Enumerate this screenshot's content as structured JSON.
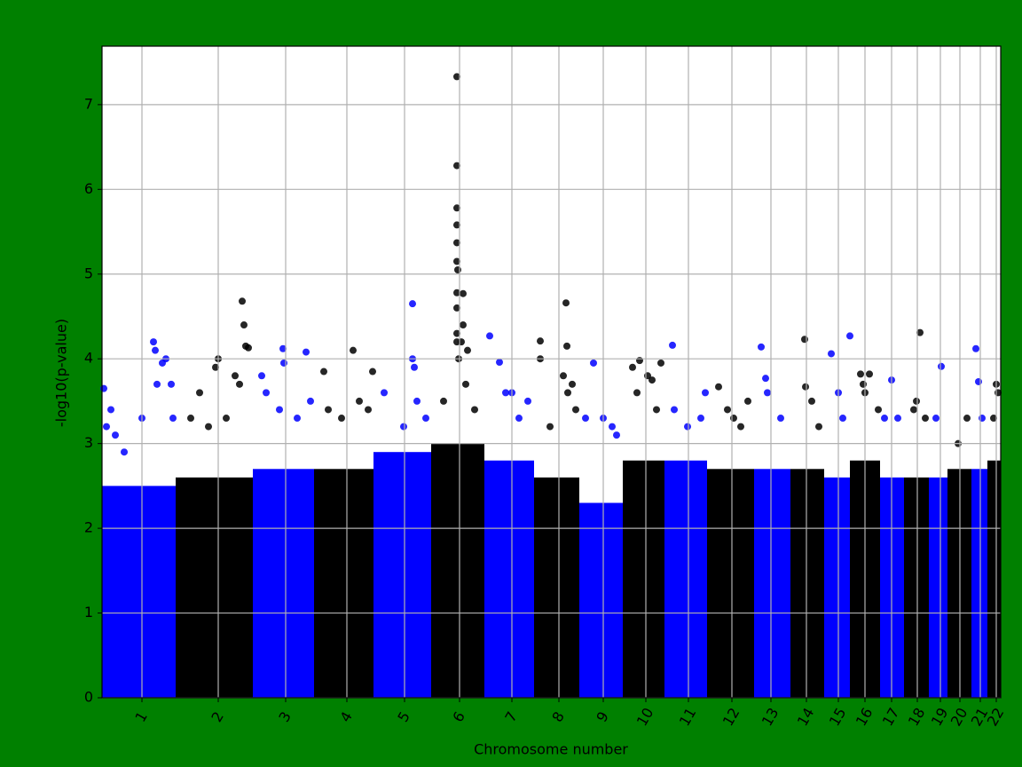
{
  "chart_data": {
    "type": "manhattan",
    "x_label": "Chromosome number",
    "y_label": "-log10(p-value)",
    "xlim": [
      0,
      1013
    ],
    "ylim": [
      0,
      7.69
    ],
    "yticks": [
      0,
      1,
      2,
      3,
      4,
      5,
      6,
      7
    ],
    "grid": true,
    "chromosomes": [
      {
        "label": "1",
        "start": 0,
        "end": 83,
        "tick": 45,
        "color": "#0000ff",
        "band_top": 2.5,
        "points": [
          [
            2,
            3.65
          ],
          [
            5,
            3.2
          ],
          [
            10,
            3.4
          ],
          [
            15,
            3.1
          ],
          [
            25,
            2.9
          ],
          [
            45,
            3.3
          ],
          [
            58,
            4.2
          ],
          [
            60,
            4.1
          ],
          [
            62,
            3.7
          ],
          [
            68,
            3.95
          ],
          [
            72,
            4.0
          ],
          [
            78,
            3.7
          ],
          [
            80,
            3.3
          ]
        ]
      },
      {
        "label": "2",
        "start": 83,
        "end": 170,
        "tick": 131,
        "color": "#000000",
        "band_top": 2.6,
        "points": [
          [
            100,
            3.3
          ],
          [
            110,
            3.6
          ],
          [
            120,
            3.2
          ],
          [
            128,
            3.9
          ],
          [
            131,
            4.0
          ],
          [
            140,
            3.3
          ],
          [
            150,
            3.8
          ],
          [
            155,
            3.7
          ],
          [
            158,
            4.68
          ],
          [
            160,
            4.4
          ],
          [
            162,
            4.15
          ],
          [
            165,
            4.13
          ]
        ]
      },
      {
        "label": "3",
        "start": 170,
        "end": 239,
        "tick": 207,
        "color": "#0000ff",
        "band_top": 2.7,
        "points": [
          [
            180,
            3.8
          ],
          [
            185,
            3.6
          ],
          [
            200,
            3.4
          ],
          [
            204,
            4.12
          ],
          [
            205,
            3.95
          ],
          [
            220,
            3.3
          ],
          [
            230,
            4.08
          ],
          [
            235,
            3.5
          ]
        ]
      },
      {
        "label": "4",
        "start": 239,
        "end": 306,
        "tick": 276,
        "color": "#000000",
        "band_top": 2.7,
        "points": [
          [
            250,
            3.85
          ],
          [
            255,
            3.4
          ],
          [
            270,
            3.3
          ],
          [
            283,
            4.1
          ],
          [
            290,
            3.5
          ],
          [
            300,
            3.4
          ],
          [
            305,
            3.85
          ]
        ]
      },
      {
        "label": "5",
        "start": 306,
        "end": 371,
        "tick": 341,
        "color": "#0000ff",
        "band_top": 2.9,
        "points": [
          [
            318,
            3.6
          ],
          [
            340,
            3.2
          ],
          [
            350,
            4.65
          ],
          [
            350,
            4.0
          ],
          [
            352,
            3.9
          ],
          [
            355,
            3.5
          ],
          [
            365,
            3.3
          ]
        ]
      },
      {
        "label": "6",
        "start": 371,
        "end": 431,
        "tick": 403,
        "color": "#000000",
        "band_top": 3.0,
        "points": [
          [
            385,
            3.5
          ],
          [
            400,
            7.33
          ],
          [
            400,
            6.28
          ],
          [
            400,
            5.78
          ],
          [
            400,
            5.58
          ],
          [
            400,
            5.37
          ],
          [
            400,
            5.15
          ],
          [
            401,
            5.05
          ],
          [
            400,
            4.78
          ],
          [
            400,
            4.6
          ],
          [
            400,
            4.3
          ],
          [
            400,
            4.2
          ],
          [
            402,
            4.0
          ],
          [
            407,
            4.77
          ],
          [
            407,
            4.4
          ],
          [
            405,
            4.2
          ],
          [
            410,
            3.7
          ],
          [
            412,
            4.1
          ],
          [
            420,
            3.4
          ]
        ]
      },
      {
        "label": "7",
        "start": 431,
        "end": 487,
        "tick": 462,
        "color": "#0000ff",
        "band_top": 2.8,
        "points": [
          [
            437,
            4.27
          ],
          [
            448,
            3.96
          ],
          [
            455,
            3.6
          ],
          [
            462,
            3.6
          ],
          [
            470,
            3.3
          ],
          [
            480,
            3.5
          ]
        ]
      },
      {
        "label": "8",
        "start": 487,
        "end": 538,
        "tick": 515,
        "color": "#000000",
        "band_top": 2.6,
        "points": [
          [
            494,
            4.21
          ],
          [
            494,
            4.0
          ],
          [
            505,
            3.2
          ],
          [
            520,
            3.8
          ],
          [
            523,
            4.66
          ],
          [
            524,
            4.15
          ],
          [
            525,
            3.6
          ],
          [
            530,
            3.7
          ],
          [
            534,
            3.4
          ]
        ]
      },
      {
        "label": "9",
        "start": 538,
        "end": 587,
        "tick": 565,
        "color": "#0000ff",
        "band_top": 2.3,
        "points": [
          [
            545,
            3.3
          ],
          [
            554,
            3.95
          ],
          [
            565,
            3.3
          ],
          [
            575,
            3.2
          ],
          [
            580,
            3.1
          ]
        ]
      },
      {
        "label": "10",
        "start": 587,
        "end": 634,
        "tick": 613,
        "color": "#000000",
        "band_top": 2.8,
        "points": [
          [
            598,
            3.9
          ],
          [
            603,
            3.6
          ],
          [
            606,
            3.98
          ],
          [
            615,
            3.8
          ],
          [
            620,
            3.75
          ],
          [
            625,
            3.4
          ],
          [
            630,
            3.95
          ]
        ]
      },
      {
        "label": "11",
        "start": 634,
        "end": 682,
        "tick": 661,
        "color": "#0000ff",
        "band_top": 2.8,
        "points": [
          [
            643,
            4.16
          ],
          [
            645,
            3.4
          ],
          [
            660,
            3.2
          ],
          [
            675,
            3.3
          ],
          [
            680,
            3.6
          ]
        ]
      },
      {
        "label": "12",
        "start": 682,
        "end": 735,
        "tick": 710,
        "color": "#000000",
        "band_top": 2.7,
        "points": [
          [
            695,
            3.67
          ],
          [
            705,
            3.4
          ],
          [
            712,
            3.3
          ],
          [
            720,
            3.2
          ],
          [
            728,
            3.5
          ]
        ]
      },
      {
        "label": "13",
        "start": 735,
        "end": 776,
        "tick": 754,
        "color": "#0000ff",
        "band_top": 2.7,
        "points": [
          [
            743,
            4.14
          ],
          [
            748,
            3.77
          ],
          [
            750,
            3.6
          ],
          [
            765,
            3.3
          ]
        ]
      },
      {
        "label": "14",
        "start": 776,
        "end": 814,
        "tick": 794,
        "color": "#000000",
        "band_top": 2.7,
        "points": [
          [
            792,
            4.23
          ],
          [
            793,
            3.67
          ],
          [
            800,
            3.5
          ],
          [
            808,
            3.2
          ]
        ]
      },
      {
        "label": "15",
        "start": 814,
        "end": 843,
        "tick": 830,
        "color": "#0000ff",
        "band_top": 2.6,
        "points": [
          [
            822,
            4.06
          ],
          [
            830,
            3.6
          ],
          [
            835,
            3.3
          ],
          [
            843,
            4.27
          ]
        ]
      },
      {
        "label": "16",
        "start": 843,
        "end": 877,
        "tick": 860,
        "color": "#000000",
        "band_top": 2.8,
        "points": [
          [
            855,
            3.82
          ],
          [
            858,
            3.7
          ],
          [
            860,
            3.6
          ],
          [
            865,
            3.82
          ],
          [
            875,
            3.4
          ]
        ]
      },
      {
        "label": "17",
        "start": 877,
        "end": 904,
        "tick": 890,
        "color": "#0000ff",
        "band_top": 2.6,
        "points": [
          [
            882,
            3.3
          ],
          [
            890,
            3.75
          ],
          [
            897,
            3.3
          ]
        ]
      },
      {
        "label": "18",
        "start": 904,
        "end": 932,
        "tick": 919,
        "color": "#000000",
        "band_top": 2.6,
        "points": [
          [
            915,
            3.4
          ],
          [
            918,
            3.5
          ],
          [
            922,
            4.31
          ],
          [
            928,
            3.3
          ]
        ]
      },
      {
        "label": "19",
        "start": 932,
        "end": 953,
        "tick": 945,
        "color": "#0000ff",
        "band_top": 2.6,
        "points": [
          [
            940,
            3.3
          ],
          [
            946,
            3.91
          ]
        ]
      },
      {
        "label": "20",
        "start": 953,
        "end": 980,
        "tick": 967,
        "color": "#000000",
        "band_top": 2.7,
        "points": [
          [
            965,
            3.0
          ],
          [
            975,
            3.3
          ]
        ]
      },
      {
        "label": "21",
        "start": 980,
        "end": 998,
        "tick": 990,
        "color": "#0000ff",
        "band_top": 2.7,
        "points": [
          [
            985,
            4.12
          ],
          [
            988,
            3.73
          ],
          [
            992,
            3.3
          ]
        ]
      },
      {
        "label": "22",
        "start": 998,
        "end": 1013,
        "tick": 1008,
        "color": "#000000",
        "band_top": 2.8,
        "points": [
          [
            1005,
            3.3
          ],
          [
            1008,
            3.7
          ],
          [
            1010,
            3.6
          ]
        ]
      }
    ]
  }
}
